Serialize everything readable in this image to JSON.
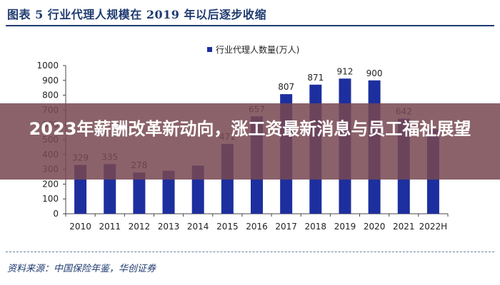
{
  "header": {
    "title": "图表 5 行业代理人规模在 2019 年以后逐步收缩"
  },
  "overlay": {
    "title": "2023年薪酬改革新动向，涨工资最新消息与员工福祉展望"
  },
  "source": {
    "text": "资料来源：中国保险年鉴，华创证券"
  },
  "chart_data": {
    "type": "bar",
    "categories": [
      "2010",
      "2011",
      "2012",
      "2013",
      "2014",
      "2015",
      "2016",
      "2017",
      "2018",
      "2019",
      "2020",
      "2021",
      "2022H"
    ],
    "series": [
      {
        "name": "行业代理人数量(万人)",
        "values": [
          329,
          335,
          278,
          290,
          325,
          471,
          657,
          807,
          871,
          912,
          900,
          642,
          570
        ],
        "data_labels": [
          "329",
          "335",
          "278",
          "",
          "",
          "471",
          "657",
          "807",
          "871",
          "912",
          "900",
          "642",
          ""
        ]
      }
    ],
    "ylim": [
      0,
      1000
    ],
    "yticks": [
      "0",
      "100",
      "200",
      "300",
      "400",
      "500",
      "600",
      "700",
      "800",
      "900",
      "1000"
    ],
    "grid": false,
    "legend_position": "top-center",
    "colors": {
      "bar": "#1d2f9e",
      "axis": "#444444",
      "title": "#1f3a70"
    }
  }
}
